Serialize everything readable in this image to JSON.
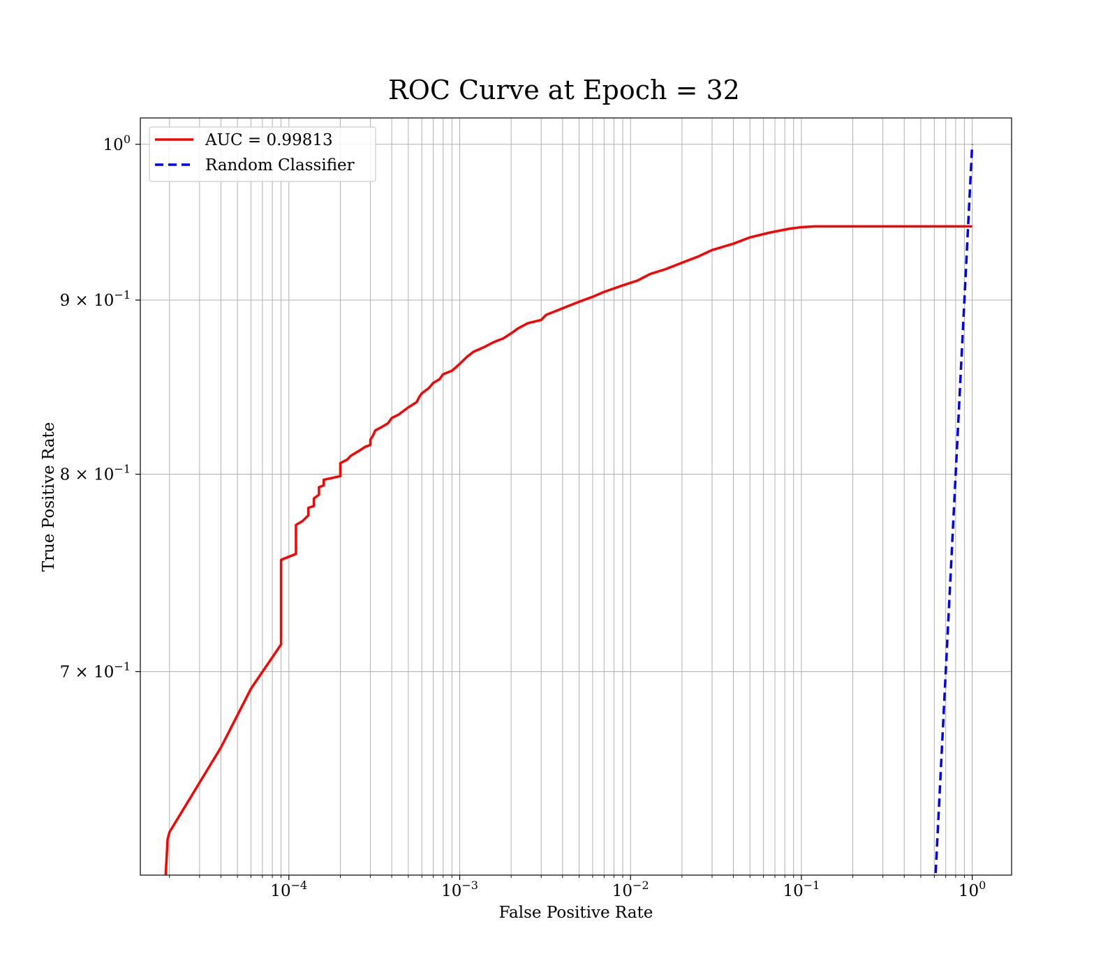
{
  "chart_data": {
    "type": "line",
    "title": "ROC Curve at Epoch = 32",
    "xlabel": "False Positive Rate",
    "ylabel": "True Positive Rate",
    "xscale": "log",
    "yscale": "log",
    "xlim": [
      1.35e-05,
      1.7
    ],
    "ylim": [
      0.61,
      1.018
    ],
    "grid": "both major and minor (x), major and minor (y)",
    "legend_position": "upper-left",
    "xticks": [
      {
        "value": 0.0001,
        "label_base": "10",
        "label_exp": "−4"
      },
      {
        "value": 0.001,
        "label_base": "10",
        "label_exp": "−3"
      },
      {
        "value": 0.01,
        "label_base": "10",
        "label_exp": "−2"
      },
      {
        "value": 0.1,
        "label_base": "10",
        "label_exp": "−1"
      },
      {
        "value": 1,
        "label_base": "10",
        "label_exp": "0"
      }
    ],
    "yticks": [
      {
        "value": 0.7,
        "label_base": "7 × 10",
        "label_exp": "−1"
      },
      {
        "value": 0.8,
        "label_base": "8 × 10",
        "label_exp": "−1"
      },
      {
        "value": 0.9,
        "label_base": "9 × 10",
        "label_exp": "−1"
      },
      {
        "value": 1.0,
        "label_base": "10",
        "label_exp": "0"
      }
    ],
    "series": [
      {
        "name": "AUC = 0.99813",
        "color": "#ff0000",
        "style": "solid",
        "points": [
          [
            1.9e-05,
            0.61
          ],
          [
            1.95e-05,
            0.625
          ],
          [
            2e-05,
            0.628
          ],
          [
            4e-05,
            0.665
          ],
          [
            6e-05,
            0.692
          ],
          [
            9e-05,
            0.713
          ],
          [
            9e-05,
            0.755
          ],
          [
            0.00011,
            0.758
          ],
          [
            0.00011,
            0.773
          ],
          [
            0.00012,
            0.775
          ],
          [
            0.00013,
            0.778
          ],
          [
            0.00013,
            0.782
          ],
          [
            0.00014,
            0.783
          ],
          [
            0.00014,
            0.787
          ],
          [
            0.00015,
            0.789
          ],
          [
            0.00015,
            0.793
          ],
          [
            0.00016,
            0.794
          ],
          [
            0.00016,
            0.797
          ],
          [
            0.00018,
            0.798
          ],
          [
            0.0002,
            0.799
          ],
          [
            0.0002,
            0.803
          ],
          [
            0.0002,
            0.806
          ],
          [
            0.00022,
            0.808
          ],
          [
            0.00023,
            0.81
          ],
          [
            0.00026,
            0.813
          ],
          [
            0.00028,
            0.815
          ],
          [
            0.0003,
            0.816
          ],
          [
            0.0003,
            0.819
          ],
          [
            0.00031,
            0.821
          ],
          [
            0.00032,
            0.824
          ],
          [
            0.00035,
            0.826
          ],
          [
            0.00038,
            0.828
          ],
          [
            0.0004,
            0.831
          ],
          [
            0.00044,
            0.833
          ],
          [
            0.0005,
            0.837
          ],
          [
            0.00056,
            0.84
          ],
          [
            0.00058,
            0.843
          ],
          [
            0.0006,
            0.845
          ],
          [
            0.00066,
            0.848
          ],
          [
            0.0007,
            0.851
          ],
          [
            0.00076,
            0.853
          ],
          [
            0.0008,
            0.856
          ],
          [
            0.0009,
            0.858
          ],
          [
            0.001,
            0.862
          ],
          [
            0.0011,
            0.866
          ],
          [
            0.0012,
            0.869
          ],
          [
            0.0014,
            0.872
          ],
          [
            0.0016,
            0.875
          ],
          [
            0.0018,
            0.877
          ],
          [
            0.002,
            0.88
          ],
          [
            0.0022,
            0.883
          ],
          [
            0.0025,
            0.886
          ],
          [
            0.003,
            0.888
          ],
          [
            0.0032,
            0.891
          ],
          [
            0.004,
            0.895
          ],
          [
            0.005,
            0.899
          ],
          [
            0.006,
            0.902
          ],
          [
            0.007,
            0.905
          ],
          [
            0.009,
            0.909
          ],
          [
            0.011,
            0.912
          ],
          [
            0.013,
            0.916
          ],
          [
            0.016,
            0.919
          ],
          [
            0.02,
            0.923
          ],
          [
            0.025,
            0.927
          ],
          [
            0.03,
            0.931
          ],
          [
            0.04,
            0.935
          ],
          [
            0.05,
            0.939
          ],
          [
            0.065,
            0.942
          ],
          [
            0.085,
            0.9445
          ],
          [
            0.1,
            0.9455
          ],
          [
            0.12,
            0.946
          ],
          [
            1.0,
            0.946
          ]
        ]
      },
      {
        "name": "Random Classifier",
        "color": "#0000ff",
        "style": "dashed",
        "points": [
          [
            0.6,
            0.6
          ],
          [
            1.0,
            1.0
          ]
        ]
      }
    ]
  }
}
